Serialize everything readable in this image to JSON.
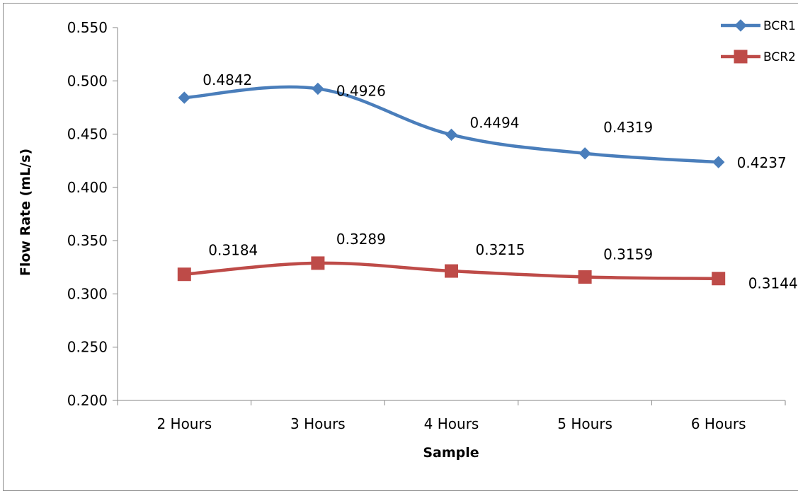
{
  "chart_data": {
    "type": "line",
    "title": "",
    "xlabel": "Sample",
    "ylabel": "Flow Rate  (mL/s)",
    "categories": [
      "2 Hours",
      "3 Hours",
      "4 Hours",
      "5 Hours",
      "6 Hours"
    ],
    "ylim": [
      0.2,
      0.55
    ],
    "yticks": [
      "0.200",
      "0.250",
      "0.300",
      "0.350",
      "0.400",
      "0.450",
      "0.500",
      "0.550"
    ],
    "grid": false,
    "legend": "top-right",
    "series": [
      {
        "name": "BCR1",
        "color": "#4a7ebb",
        "marker": "diamond",
        "values": [
          0.4842,
          0.4926,
          0.4494,
          0.4319,
          0.4237
        ],
        "labels": [
          "0.4842",
          "0.4926",
          "0.4494",
          "0.4319",
          "0.4237"
        ]
      },
      {
        "name": "BCR2",
        "color": "#be4b48",
        "marker": "square",
        "values": [
          0.3184,
          0.3289,
          0.3215,
          0.3159,
          0.3144
        ],
        "labels": [
          "0.3184",
          "0.3289",
          "0.3215",
          "0.3159",
          "0.3144"
        ]
      }
    ]
  }
}
